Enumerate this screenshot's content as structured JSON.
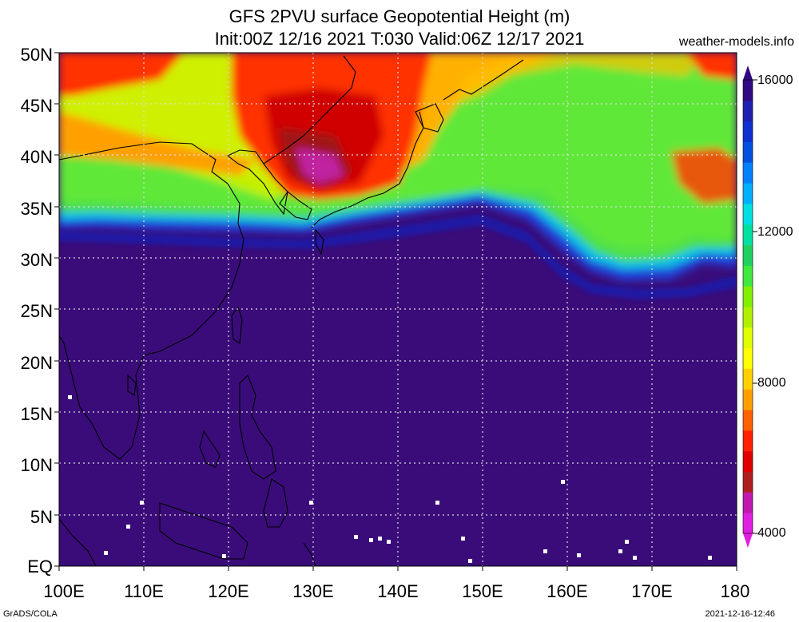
{
  "title_line1": "GFS 2PVU surface Geopotential Height (m)",
  "title_line2": "Init:00Z 12/16 2021 T:030 Valid:06Z 12/17 2021",
  "site": "weather-models.info",
  "footer_left": "GrADS/COLA",
  "footer_right": "2021-12-16-12:46",
  "map": {
    "lon_range": [
      100,
      180
    ],
    "lat_range": [
      0,
      50
    ],
    "lat_labels": [
      "50N",
      "45N",
      "40N",
      "35N",
      "30N",
      "25N",
      "20N",
      "15N",
      "10N",
      "5N",
      "EQ"
    ],
    "lon_labels": [
      "100E",
      "110E",
      "120E",
      "130E",
      "140E",
      "150E",
      "160E",
      "170E",
      "180"
    ]
  },
  "colorbar": {
    "range": [
      4000,
      16000
    ],
    "labels": [
      "16000",
      "12000",
      "8000",
      "4000"
    ],
    "colors": [
      "#e020e0",
      "#c01ab0",
      "#b02020",
      "#e00000",
      "#ff2000",
      "#ff6000",
      "#ffa000",
      "#ffd000",
      "#ffff00",
      "#e0ff00",
      "#b0f000",
      "#80f000",
      "#40e840",
      "#20d060",
      "#00e0a0",
      "#00e0e0",
      "#00b0ff",
      "#0080ff",
      "#0050e0",
      "#1030d0",
      "#2020b0",
      "#300a80"
    ]
  }
}
